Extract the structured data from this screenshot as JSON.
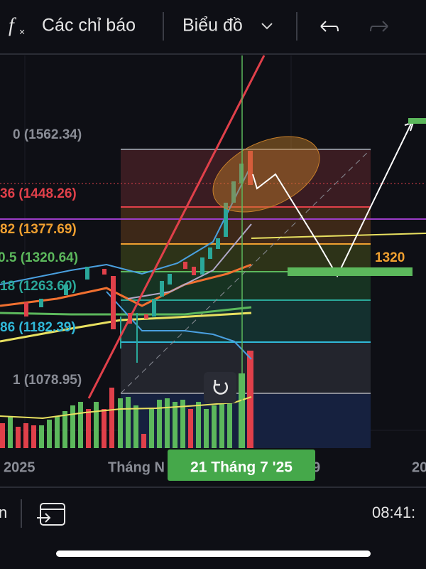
{
  "toolbar": {
    "indicators": "Các chỉ báo",
    "chart": "Biểu đồ"
  },
  "fib_levels": [
    {
      "label": "0 (1562.34)"
    },
    {
      "label": "36 (1448.26)"
    },
    {
      "label": "82 (1377.69)"
    },
    {
      "label": "0.5 (1320.64)"
    },
    {
      "label": "18 (1263.60)"
    },
    {
      "label": "86 (1182.39)"
    },
    {
      "label": "1 (1078.95)"
    }
  ],
  "price_label": "1320",
  "x_axis": [
    "2025",
    "Tháng N",
    "9",
    "20"
  ],
  "crosshair_date": "21 Tháng 7 '25",
  "bottom_bar": {
    "left": "n",
    "time": "08:41:"
  }
}
